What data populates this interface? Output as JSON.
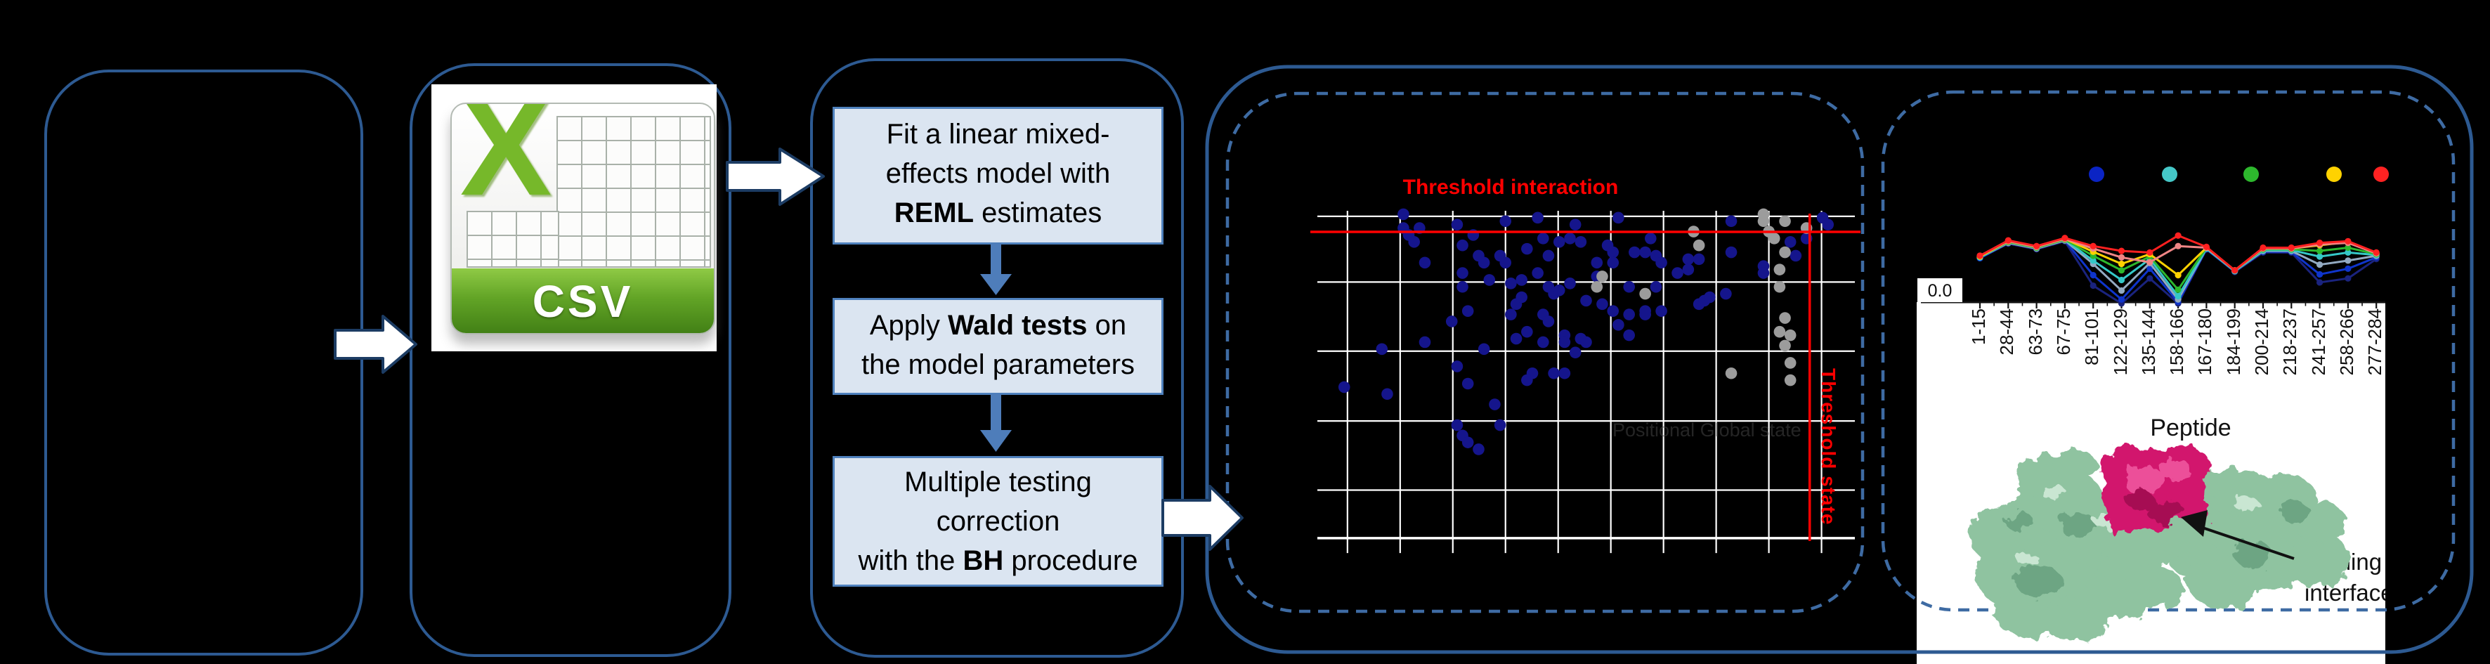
{
  "accent_colors": {
    "panel_border": "#2d5a92",
    "dashed_border": "#3e6ba3",
    "box_fill": "#dbe5f1",
    "box_border": "#4f81bd",
    "arrow_blue": "#4e7dba",
    "threshold_red": "#ff0000"
  },
  "csv_icon": {
    "label": "CSV",
    "x_glyph": "X"
  },
  "flow": {
    "steps": {
      "box1": {
        "lines": [
          [
            {
              "t": "Fit a linear mixed-"
            }
          ],
          [
            {
              "t": "effects model with"
            }
          ],
          [
            {
              "t": "REML",
              "b": true
            },
            {
              "t": " estimates"
            }
          ]
        ]
      },
      "box2": {
        "lines": [
          [
            {
              "t": "Apply "
            },
            {
              "t": "Wald tests",
              "b": true
            },
            {
              "t": " on"
            }
          ],
          [
            {
              "t": "the model parameters"
            }
          ]
        ]
      },
      "box3": {
        "lines": [
          [
            {
              "t": "Multiple testing"
            }
          ],
          [
            {
              "t": "correction"
            }
          ],
          [
            {
              "t": "with the "
            },
            {
              "t": "BH",
              "b": true
            },
            {
              "t": " procedure"
            }
          ]
        ]
      }
    }
  },
  "scatter": {
    "type": "scatter",
    "title": "Threshold interaction",
    "side_label": "Threshold state",
    "faint_axis_label": "Positional Global state",
    "point_color": "#15158c",
    "nonsig_color": "#9c9c9c",
    "grid_color": "#ffffff",
    "threshold_interaction_y": 0.061,
    "threshold_state_x": 0.916,
    "grid": {
      "v_start": 0.056,
      "v_step": 0.098,
      "v_count": 10,
      "h_lines": [
        0.016,
        0.206,
        0.406,
        0.608,
        0.808
      ],
      "axis_y": 0.947
    },
    "points_signif": [
      [
        0.05,
        0.51
      ],
      [
        0.12,
        0.4
      ],
      [
        0.13,
        0.53
      ],
      [
        0.16,
        0.01
      ],
      [
        0.16,
        0.05
      ],
      [
        0.17,
        0.07
      ],
      [
        0.18,
        0.09
      ],
      [
        0.19,
        0.05
      ],
      [
        0.2,
        0.15
      ],
      [
        0.2,
        0.38
      ],
      [
        0.26,
        0.04
      ],
      [
        0.27,
        0.1
      ],
      [
        0.27,
        0.18
      ],
      [
        0.27,
        0.22
      ],
      [
        0.25,
        0.32
      ],
      [
        0.28,
        0.29
      ],
      [
        0.26,
        0.45
      ],
      [
        0.28,
        0.5
      ],
      [
        0.26,
        0.62
      ],
      [
        0.27,
        0.65
      ],
      [
        0.28,
        0.67
      ],
      [
        0.3,
        0.69
      ],
      [
        0.33,
        0.56
      ],
      [
        0.34,
        0.62
      ],
      [
        0.29,
        0.07
      ],
      [
        0.3,
        0.13
      ],
      [
        0.31,
        0.15
      ],
      [
        0.32,
        0.2
      ],
      [
        0.31,
        0.4
      ],
      [
        0.35,
        0.03
      ],
      [
        0.34,
        0.13
      ],
      [
        0.35,
        0.15
      ],
      [
        0.36,
        0.21
      ],
      [
        0.37,
        0.27
      ],
      [
        0.36,
        0.3
      ],
      [
        0.37,
        0.37
      ],
      [
        0.39,
        0.11
      ],
      [
        0.38,
        0.2
      ],
      [
        0.38,
        0.25
      ],
      [
        0.39,
        0.35
      ],
      [
        0.4,
        0.47
      ],
      [
        0.39,
        0.49
      ],
      [
        0.41,
        0.18
      ],
      [
        0.42,
        0.3
      ],
      [
        0.42,
        0.38
      ],
      [
        0.41,
        0.02
      ],
      [
        0.42,
        0.08
      ],
      [
        0.43,
        0.13
      ],
      [
        0.43,
        0.22
      ],
      [
        0.43,
        0.32
      ],
      [
        0.44,
        0.24
      ],
      [
        0.44,
        0.47
      ],
      [
        0.45,
        0.09
      ],
      [
        0.45,
        0.23
      ],
      [
        0.46,
        0.36
      ],
      [
        0.46,
        0.38
      ],
      [
        0.46,
        0.47
      ],
      [
        0.47,
        0.08
      ],
      [
        0.47,
        0.21
      ],
      [
        0.48,
        0.41
      ],
      [
        0.48,
        0.04
      ],
      [
        0.49,
        0.09
      ],
      [
        0.49,
        0.37
      ],
      [
        0.5,
        0.26
      ],
      [
        0.5,
        0.38
      ],
      [
        0.52,
        0.15
      ],
      [
        0.52,
        0.19
      ],
      [
        0.53,
        0.27
      ],
      [
        0.54,
        0.1
      ],
      [
        0.55,
        0.12
      ],
      [
        0.55,
        0.15
      ],
      [
        0.55,
        0.29
      ],
      [
        0.56,
        0.02
      ],
      [
        0.56,
        0.33
      ],
      [
        0.58,
        0.22
      ],
      [
        0.58,
        0.3
      ],
      [
        0.58,
        0.36
      ],
      [
        0.59,
        0.12
      ],
      [
        0.61,
        0.12
      ],
      [
        0.61,
        0.29
      ],
      [
        0.61,
        0.3
      ],
      [
        0.62,
        0.08
      ],
      [
        0.63,
        0.13
      ],
      [
        0.63,
        0.22
      ],
      [
        0.64,
        0.15
      ],
      [
        0.64,
        0.29
      ],
      [
        0.67,
        0.18
      ],
      [
        0.69,
        0.14
      ],
      [
        0.69,
        0.17
      ],
      [
        0.71,
        0.14
      ],
      [
        0.71,
        0.27
      ],
      [
        0.72,
        0.26
      ],
      [
        0.73,
        0.25
      ],
      [
        0.76,
        0.24
      ],
      [
        0.77,
        0.03
      ],
      [
        0.77,
        0.12
      ],
      [
        0.83,
        0.16
      ],
      [
        0.83,
        0.18
      ],
      [
        0.88,
        0.09
      ],
      [
        0.89,
        0.13
      ],
      [
        0.91,
        0.08
      ],
      [
        0.94,
        0.02
      ],
      [
        0.95,
        0.04
      ]
    ],
    "points_nonsignif": [
      [
        0.83,
        0.01
      ],
      [
        0.83,
        0.03
      ],
      [
        0.84,
        0.06
      ],
      [
        0.7,
        0.06
      ],
      [
        0.71,
        0.1
      ],
      [
        0.85,
        0.08
      ],
      [
        0.87,
        0.03
      ],
      [
        0.87,
        0.12
      ],
      [
        0.53,
        0.19
      ],
      [
        0.52,
        0.22
      ],
      [
        0.61,
        0.24
      ],
      [
        0.86,
        0.17
      ],
      [
        0.86,
        0.22
      ],
      [
        0.87,
        0.31
      ],
      [
        0.86,
        0.35
      ],
      [
        0.88,
        0.36
      ],
      [
        0.87,
        0.39
      ],
      [
        0.88,
        0.44
      ],
      [
        0.77,
        0.47
      ],
      [
        0.88,
        0.49
      ],
      [
        0.91,
        0.05
      ]
    ]
  },
  "uptake": {
    "type": "line",
    "y_tick": "0.0",
    "x_label": "Peptide",
    "peptides": [
      "1-15",
      "28-44",
      "63-73",
      "67-75",
      "81-101",
      "122-129",
      "135-144",
      "158-166",
      "167-180",
      "184-199",
      "200-214",
      "218-237",
      "241-257",
      "258-266",
      "277-284"
    ],
    "legend_colors": [
      "#0b24c4",
      "#45c8c8",
      "#2db82d",
      "#ffd200",
      "#ff2222"
    ],
    "series": [
      {
        "name": "navy",
        "color": "#1a237e",
        "values": [
          0.57,
          0.75,
          0.68,
          0.78,
          0.23,
          0.01,
          0.32,
          0.01,
          0.68,
          0.4,
          0.64,
          0.64,
          0.27,
          0.32,
          0.56
        ]
      },
      {
        "name": "blue",
        "color": "#0f35cc",
        "values": [
          0.57,
          0.76,
          0.69,
          0.79,
          0.36,
          0.06,
          0.44,
          0.03,
          0.68,
          0.41,
          0.65,
          0.65,
          0.37,
          0.44,
          0.58
        ]
      },
      {
        "name": "steel",
        "color": "#93aac2",
        "values": [
          0.58,
          0.76,
          0.69,
          0.79,
          0.5,
          0.17,
          0.51,
          0.06,
          0.69,
          0.41,
          0.66,
          0.66,
          0.49,
          0.54,
          0.6
        ]
      },
      {
        "name": "cyan",
        "color": "#35c8c8",
        "values": [
          0.58,
          0.77,
          0.7,
          0.8,
          0.54,
          0.3,
          0.56,
          0.1,
          0.69,
          0.41,
          0.67,
          0.67,
          0.59,
          0.64,
          0.61
        ]
      },
      {
        "name": "green",
        "color": "#2db82d",
        "values": [
          0.59,
          0.77,
          0.7,
          0.8,
          0.6,
          0.42,
          0.59,
          0.18,
          0.7,
          0.42,
          0.68,
          0.68,
          0.66,
          0.7,
          0.62
        ]
      },
      {
        "name": "yellow",
        "color": "#ffd200",
        "values": [
          0.59,
          0.78,
          0.71,
          0.81,
          0.65,
          0.5,
          0.62,
          0.36,
          0.7,
          0.42,
          0.69,
          0.69,
          0.73,
          0.77,
          0.63
        ]
      },
      {
        "name": "salmon",
        "color": "#f08585",
        "values": [
          0.6,
          0.78,
          0.71,
          0.81,
          0.69,
          0.58,
          0.52,
          0.72,
          0.7,
          0.42,
          0.69,
          0.69,
          0.74,
          0.76,
          0.63
        ]
      },
      {
        "name": "red",
        "color": "#ff2020",
        "values": [
          0.6,
          0.79,
          0.72,
          0.82,
          0.72,
          0.66,
          0.64,
          0.85,
          0.71,
          0.42,
          0.7,
          0.7,
          0.76,
          0.78,
          0.64
        ]
      }
    ]
  },
  "protein": {
    "annotation_line1": "Binding",
    "annotation_line2": "interface"
  }
}
